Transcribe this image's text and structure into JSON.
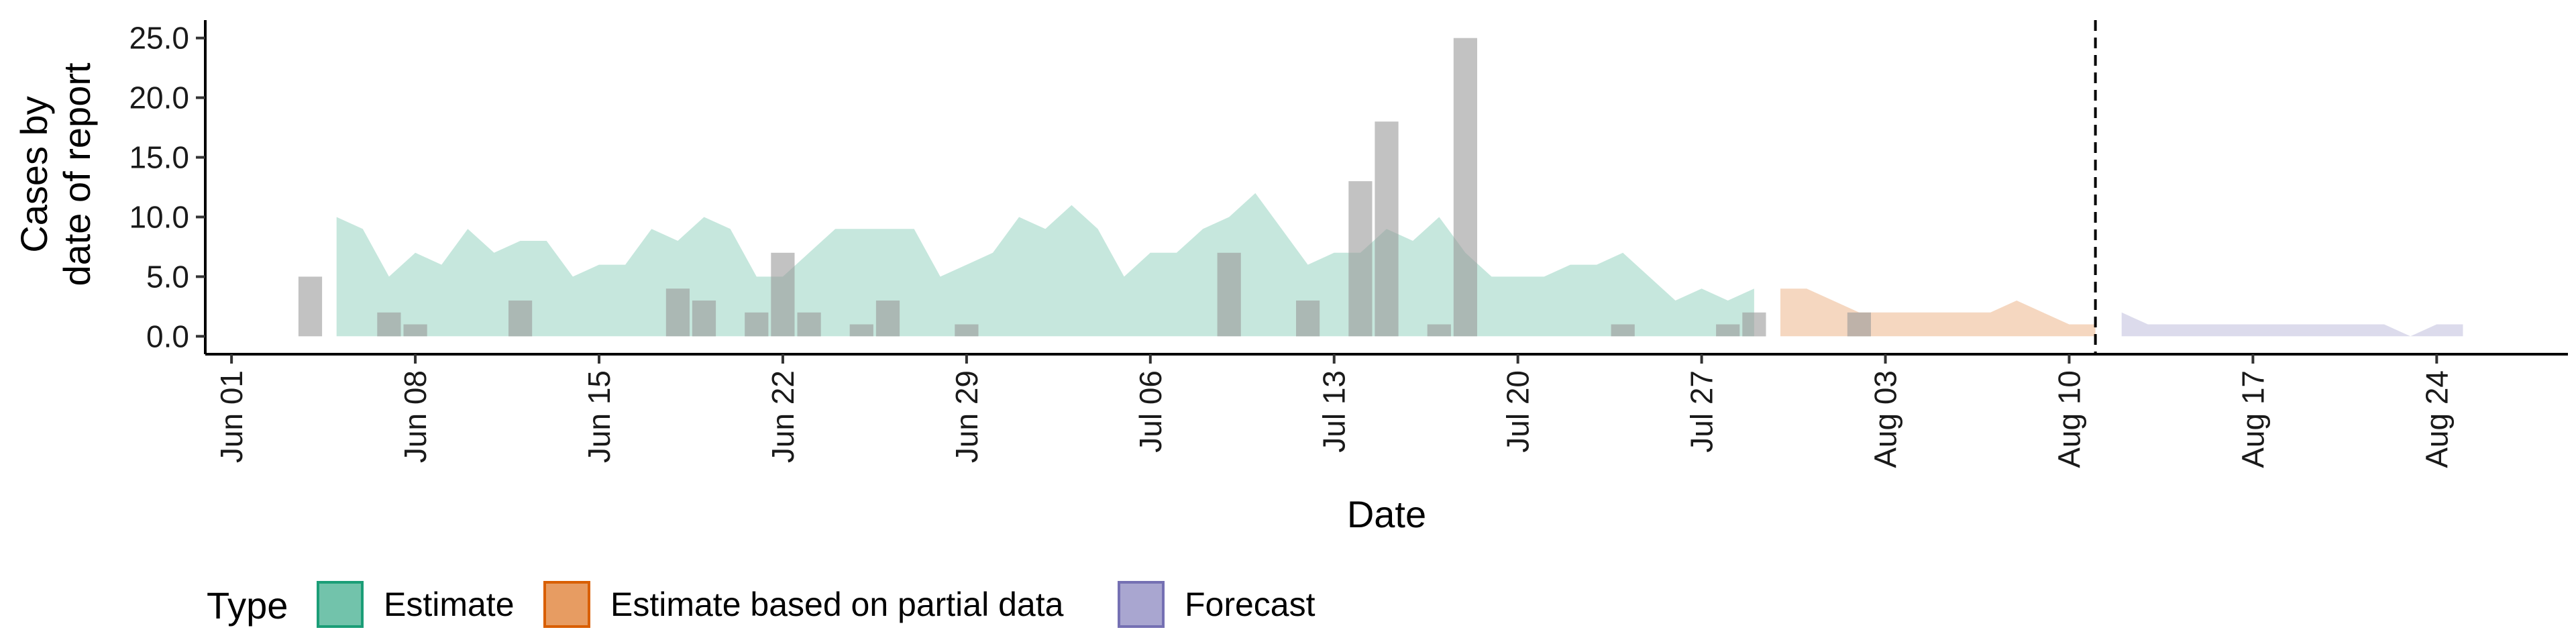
{
  "chart_data": {
    "type": "area",
    "xlabel": "Date",
    "ylabel": [
      "Cases by",
      "date of report"
    ],
    "ylim": [
      -1.5,
      26.5
    ],
    "y_ticks": [
      0,
      5,
      10,
      15,
      20,
      25
    ],
    "y_tick_labels": [
      "0.0",
      "5.0",
      "10.0",
      "15.0",
      "20.0",
      "25.0"
    ],
    "x_tick_labels": [
      "Jun 01",
      "Jun 08",
      "Jun 15",
      "Jun 22",
      "Jun 29",
      "Jul 06",
      "Jul 13",
      "Jul 20",
      "Jul 27",
      "Aug 03",
      "Aug 10",
      "Aug 17",
      "Aug 24"
    ],
    "x_ticks": [
      "2020-06-01",
      "2020-06-08",
      "2020-06-15",
      "2020-06-22",
      "2020-06-29",
      "2020-07-06",
      "2020-07-13",
      "2020-07-20",
      "2020-07-27",
      "2020-08-03",
      "2020-08-10",
      "2020-08-17",
      "2020-08-24"
    ],
    "xlim": [
      "2020-05-31",
      "2020-08-29"
    ],
    "grid": false,
    "vline_date": "2020-08-11",
    "bars": {
      "dates": [
        "2020-06-04",
        "2020-06-07",
        "2020-06-08",
        "2020-06-12",
        "2020-06-18",
        "2020-06-19",
        "2020-06-21",
        "2020-06-22",
        "2020-06-23",
        "2020-06-25",
        "2020-06-26",
        "2020-06-29",
        "2020-07-09",
        "2020-07-12",
        "2020-07-14",
        "2020-07-15",
        "2020-07-17",
        "2020-07-18",
        "2020-07-24",
        "2020-07-28",
        "2020-07-29",
        "2020-08-02"
      ],
      "values": [
        5,
        2,
        1,
        3,
        4,
        3,
        2,
        7,
        2,
        1,
        3,
        1,
        7,
        3,
        13,
        18,
        1,
        25,
        1,
        1,
        2,
        2
      ],
      "color": "#999999"
    },
    "series": [
      {
        "name": "Estimate",
        "color": "#1B9E77",
        "x": [
          "2020-06-05",
          "2020-06-06",
          "2020-06-07",
          "2020-06-08",
          "2020-06-09",
          "2020-06-10",
          "2020-06-11",
          "2020-06-12",
          "2020-06-13",
          "2020-06-14",
          "2020-06-15",
          "2020-06-16",
          "2020-06-17",
          "2020-06-18",
          "2020-06-19",
          "2020-06-20",
          "2020-06-21",
          "2020-06-22",
          "2020-06-23",
          "2020-06-24",
          "2020-06-25",
          "2020-06-26",
          "2020-06-27",
          "2020-06-28",
          "2020-06-29",
          "2020-06-30",
          "2020-07-01",
          "2020-07-02",
          "2020-07-03",
          "2020-07-04",
          "2020-07-05",
          "2020-07-06",
          "2020-07-07",
          "2020-07-08",
          "2020-07-09",
          "2020-07-10",
          "2020-07-11",
          "2020-07-12",
          "2020-07-13",
          "2020-07-14",
          "2020-07-15",
          "2020-07-16",
          "2020-07-17",
          "2020-07-18",
          "2020-07-19",
          "2020-07-20",
          "2020-07-21",
          "2020-07-22",
          "2020-07-23",
          "2020-07-24",
          "2020-07-25",
          "2020-07-26",
          "2020-07-27",
          "2020-07-28",
          "2020-07-29"
        ],
        "values": [
          10,
          9,
          5,
          7,
          6,
          9,
          7,
          8,
          8,
          5,
          6,
          6,
          9,
          8,
          10,
          9,
          5,
          5,
          7,
          9,
          9,
          9,
          9,
          5,
          6,
          7,
          10,
          9,
          11,
          9,
          5,
          7,
          7,
          9,
          10,
          12,
          9,
          6,
          7,
          7,
          9,
          8,
          10,
          7,
          5,
          5,
          5,
          6,
          6,
          7,
          5,
          3,
          4,
          3,
          4
        ]
      },
      {
        "name": "Estimate based on partial data",
        "color": "#D95F02",
        "x": [
          "2020-07-30",
          "2020-07-31",
          "2020-08-01",
          "2020-08-02",
          "2020-08-03",
          "2020-08-04",
          "2020-08-05",
          "2020-08-06",
          "2020-08-07",
          "2020-08-08",
          "2020-08-09",
          "2020-08-10",
          "2020-08-11"
        ],
        "values": [
          4,
          4,
          3,
          2,
          2,
          2,
          2,
          2,
          2,
          3,
          2,
          1,
          1
        ]
      },
      {
        "name": "Forecast",
        "color": "#7570B3",
        "x": [
          "2020-08-12",
          "2020-08-13",
          "2020-08-14",
          "2020-08-15",
          "2020-08-16",
          "2020-08-17",
          "2020-08-18",
          "2020-08-19",
          "2020-08-20",
          "2020-08-21",
          "2020-08-22",
          "2020-08-23",
          "2020-08-24",
          "2020-08-25"
        ],
        "values": [
          2,
          1,
          1,
          1,
          1,
          1,
          1,
          1,
          1,
          1,
          1,
          0,
          1,
          1
        ]
      }
    ],
    "legend": {
      "title": "Type",
      "position": "bottom",
      "items": [
        "Estimate",
        "Estimate based on partial data",
        "Forecast"
      ]
    }
  }
}
